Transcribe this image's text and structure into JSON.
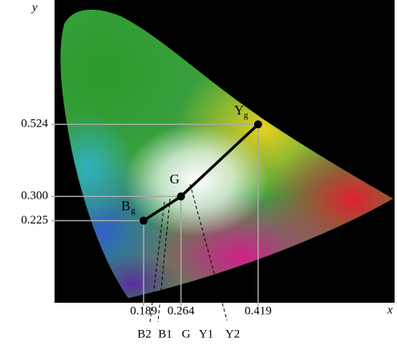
{
  "chart_data": {
    "type": "scatter",
    "x_label": "x",
    "y_label": "y",
    "x": [
      0.189,
      0.264,
      0.419
    ],
    "y": [
      0.225,
      0.3,
      0.524
    ],
    "labels": [
      "B",
      "G",
      "Y"
    ],
    "label_subscripts": [
      "g",
      null,
      "g"
    ],
    "xlim": [
      0.01,
      0.69
    ],
    "ylim": [
      -0.03,
      0.91
    ],
    "xticks": [
      0.189,
      0.264,
      0.419
    ],
    "yticks": [
      0.225,
      {
        "value": 0.3,
        "label": "0.300"
      },
      0.524
    ],
    "color": "#000000",
    "bottom_labels": [
      "B2",
      "B1",
      "G",
      "Y1",
      "Y2"
    ]
  }
}
